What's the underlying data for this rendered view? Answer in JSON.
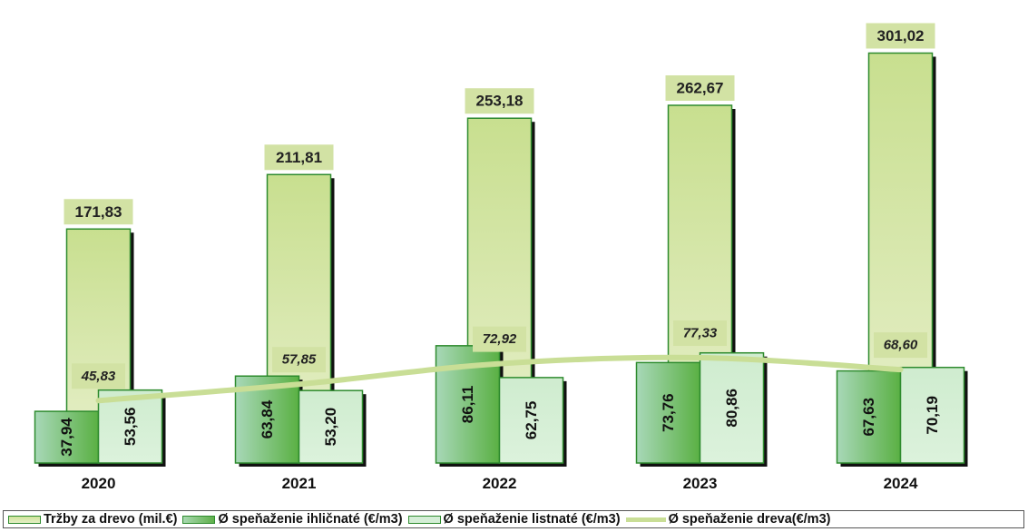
{
  "chart_data": {
    "type": "bar",
    "categories": [
      "2020",
      "2021",
      "2022",
      "2023",
      "2024"
    ],
    "series": [
      {
        "name": "Tržby za drevo (mil.€)",
        "kind": "bar",
        "values": [
          171.83,
          211.81,
          253.18,
          262.67,
          301.02
        ],
        "labels": [
          "171,83",
          "211,81",
          "253,18",
          "262,67",
          "301,02"
        ]
      },
      {
        "name": "Ø speňaženie ihličnaté (€/m3)",
        "kind": "bar",
        "values": [
          37.94,
          63.84,
          86.11,
          73.76,
          67.63
        ],
        "labels": [
          "37,94",
          "63,84",
          "86,11",
          "73,76",
          "67,63"
        ]
      },
      {
        "name": "Ø speňaženie listnaté (€/m3)",
        "kind": "bar",
        "values": [
          53.56,
          53.2,
          62.75,
          80.86,
          70.19
        ],
        "labels": [
          "53,56",
          "53,20",
          "62,75",
          "80,86",
          "70,19"
        ]
      },
      {
        "name": "Ø speňaženie dreva(€/m3)",
        "kind": "line",
        "values": [
          45.83,
          57.85,
          72.92,
          77.33,
          68.6
        ],
        "labels": [
          "45,83",
          "57,85",
          "72,92",
          "77,33",
          "68,60"
        ]
      }
    ],
    "ylim": [
      0,
      320
    ],
    "grid": false,
    "legend_position": "bottom",
    "colors": {
      "total_fill_top": "#c8df8f",
      "total_fill_bottom": "#e6efc9",
      "conifer_fill": "#5fb04a",
      "deciduous_fill": "#d4eed6",
      "bar_border": "#2e8b2e",
      "shadow": "#111111",
      "label_box": "#d2e2a4",
      "line": "#c9de96"
    }
  }
}
